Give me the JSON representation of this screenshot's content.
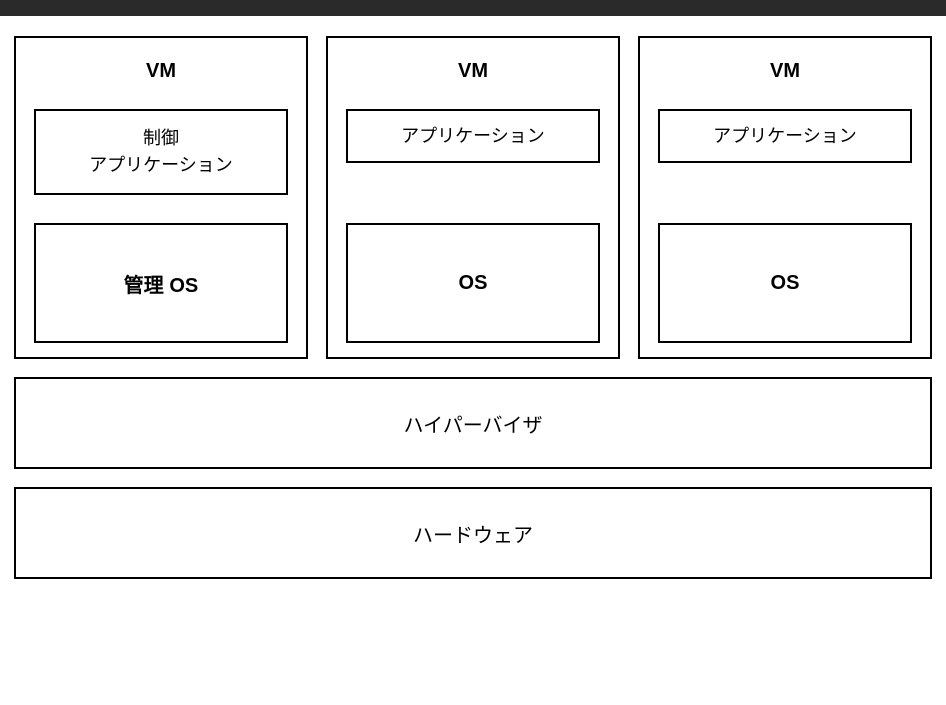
{
  "diagram": {
    "type": "layered-architecture",
    "background_color": "#ffffff",
    "border_color": "#000000",
    "border_width": 2,
    "topbar_color": "#2a2a2a",
    "font_family": "sans-serif",
    "vms": [
      {
        "title": "VM",
        "app_label": "制御\nアプリケーション",
        "app_variant": "tall",
        "os_label": "管理 OS"
      },
      {
        "title": "VM",
        "app_label": "アプリケーション",
        "app_variant": "short",
        "os_label": "OS"
      },
      {
        "title": "VM",
        "app_label": "アプリケーション",
        "app_variant": "short",
        "os_label": "OS"
      }
    ],
    "layers": [
      {
        "label": "ハイパーバイザ"
      },
      {
        "label": "ハードウェア"
      }
    ],
    "title_fontsize": 20,
    "label_fontsize": 18,
    "os_fontsize": 20,
    "layer_fontsize": 20
  }
}
